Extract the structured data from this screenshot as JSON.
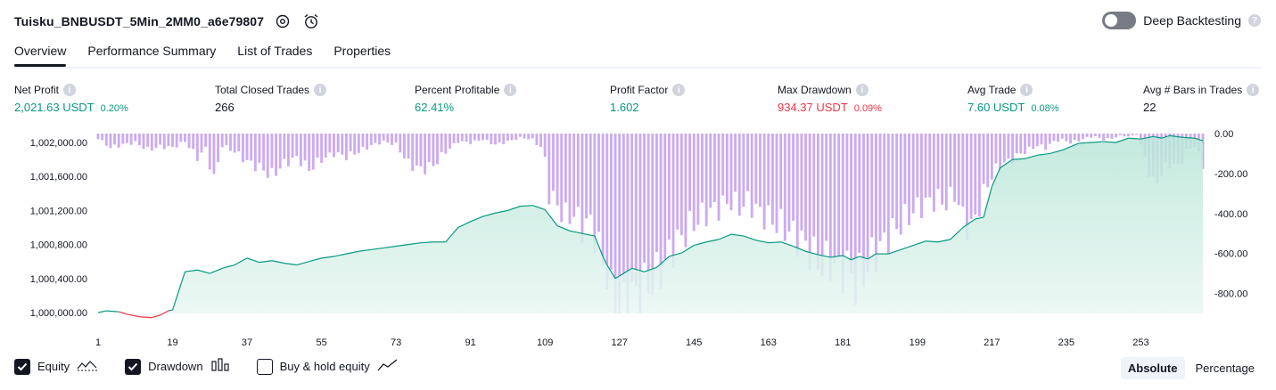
{
  "header": {
    "strategy_title": "Tuisku_BNBUSDT_5Min_2MM0_a6e79807",
    "settings_icon": "gear-icon",
    "alert_icon": "alarm-clock-icon",
    "deep_backtesting_label": "Deep Backtesting",
    "deep_backtesting_enabled": false,
    "help_glyph": "?"
  },
  "tabs": [
    {
      "label": "Overview",
      "active": true
    },
    {
      "label": "Performance Summary",
      "active": false
    },
    {
      "label": "List of Trades",
      "active": false
    },
    {
      "label": "Properties",
      "active": false
    }
  ],
  "metrics": {
    "info_glyph": "i",
    "net_profit": {
      "label": "Net Profit",
      "value": "2,021.63 USDT",
      "pct": "0.20%"
    },
    "total_closed_trades": {
      "label": "Total Closed Trades",
      "value": "266"
    },
    "percent_profitable": {
      "label": "Percent Profitable",
      "value": "62.41%"
    },
    "profit_factor": {
      "label": "Profit Factor",
      "value": "1.602"
    },
    "max_drawdown": {
      "label": "Max Drawdown",
      "value": "934.37 USDT",
      "pct": "0.09%"
    },
    "avg_trade": {
      "label": "Avg Trade",
      "value": "7.60 USDT",
      "pct": "0.08%"
    },
    "avg_bars": {
      "label": "Avg # Bars in Trades",
      "value": "22"
    }
  },
  "colors": {
    "profit": "#089981",
    "loss": "#f23645",
    "drawdown_bar": "#c9a7f0",
    "equity_fill_top": "#b9e6d8",
    "equity_fill_bottom": "#eaf7f3"
  },
  "chart_data": {
    "type": "area",
    "title": "",
    "x_ticks": [
      "1",
      "19",
      "37",
      "55",
      "73",
      "91",
      "109",
      "127",
      "145",
      "163",
      "181",
      "199",
      "217",
      "235",
      "253"
    ],
    "xlim": [
      1,
      268
    ],
    "left_axis_ticks": [
      "1,002,000.00",
      "1,001,600.00",
      "1,001,200.00",
      "1,000,800.00",
      "1,000,400.00",
      "1,000,000.00"
    ],
    "left_ylim": [
      1000000,
      1002000
    ],
    "right_axis_ticks": [
      "0.00",
      "-200.00",
      "-400.00",
      "-600.00",
      "-800.00"
    ],
    "right_ylim": [
      0,
      -900
    ],
    "equity": {
      "name": "Equity",
      "points": [
        [
          1,
          1000000
        ],
        [
          3,
          1000020
        ],
        [
          6,
          1000010
        ],
        [
          8,
          999980
        ],
        [
          11,
          999950
        ],
        [
          14,
          999940
        ],
        [
          16,
          999970
        ],
        [
          18,
          1000020
        ],
        [
          19,
          1000030
        ],
        [
          22,
          1000480
        ],
        [
          25,
          1000500
        ],
        [
          28,
          1000460
        ],
        [
          31,
          1000520
        ],
        [
          34,
          1000560
        ],
        [
          37,
          1000640
        ],
        [
          40,
          1000590
        ],
        [
          43,
          1000610
        ],
        [
          46,
          1000580
        ],
        [
          49,
          1000560
        ],
        [
          52,
          1000600
        ],
        [
          55,
          1000640
        ],
        [
          58,
          1000660
        ],
        [
          61,
          1000690
        ],
        [
          64,
          1000720
        ],
        [
          67,
          1000740
        ],
        [
          70,
          1000760
        ],
        [
          73,
          1000780
        ],
        [
          76,
          1000800
        ],
        [
          79,
          1000820
        ],
        [
          82,
          1000830
        ],
        [
          85,
          1000830
        ],
        [
          88,
          1001000
        ],
        [
          91,
          1001070
        ],
        [
          94,
          1001130
        ],
        [
          97,
          1001170
        ],
        [
          100,
          1001200
        ],
        [
          103,
          1001250
        ],
        [
          106,
          1001260
        ],
        [
          109,
          1001210
        ],
        [
          112,
          1001020
        ],
        [
          115,
          1000960
        ],
        [
          118,
          1000930
        ],
        [
          121,
          1000900
        ],
        [
          123,
          1000660
        ],
        [
          124,
          1000560
        ],
        [
          126,
          1000400
        ],
        [
          128,
          1000460
        ],
        [
          130,
          1000520
        ],
        [
          133,
          1000480
        ],
        [
          136,
          1000530
        ],
        [
          139,
          1000660
        ],
        [
          142,
          1000700
        ],
        [
          145,
          1000790
        ],
        [
          148,
          1000830
        ],
        [
          151,
          1000860
        ],
        [
          154,
          1000920
        ],
        [
          157,
          1000900
        ],
        [
          160,
          1000850
        ],
        [
          163,
          1000820
        ],
        [
          166,
          1000830
        ],
        [
          169,
          1000780
        ],
        [
          172,
          1000720
        ],
        [
          175,
          1000680
        ],
        [
          178,
          1000650
        ],
        [
          181,
          1000670
        ],
        [
          183,
          1000620
        ],
        [
          185,
          1000660
        ],
        [
          187,
          1000630
        ],
        [
          189,
          1000690
        ],
        [
          192,
          1000690
        ],
        [
          195,
          1000740
        ],
        [
          198,
          1000790
        ],
        [
          201,
          1000840
        ],
        [
          204,
          1000830
        ],
        [
          207,
          1000860
        ],
        [
          210,
          1001000
        ],
        [
          213,
          1001100
        ],
        [
          215,
          1001120
        ],
        [
          217,
          1001480
        ],
        [
          219,
          1001700
        ],
        [
          222,
          1001800
        ],
        [
          225,
          1001810
        ],
        [
          228,
          1001850
        ],
        [
          231,
          1001870
        ],
        [
          234,
          1001910
        ],
        [
          236,
          1001950
        ],
        [
          238,
          1001990
        ],
        [
          241,
          1002000
        ],
        [
          244,
          1002010
        ],
        [
          247,
          1002000
        ],
        [
          250,
          1002050
        ],
        [
          253,
          1002040
        ],
        [
          256,
          1002070
        ],
        [
          258,
          1002050
        ],
        [
          260,
          1002080
        ],
        [
          263,
          1002060
        ],
        [
          266,
          1002050
        ],
        [
          268,
          1002020
        ]
      ]
    },
    "drawdown": {
      "name": "Drawdown",
      "points": [
        [
          1,
          -25
        ],
        [
          4,
          -70
        ],
        [
          7,
          -55
        ],
        [
          10,
          -45
        ],
        [
          13,
          -80
        ],
        [
          16,
          -65
        ],
        [
          19,
          -70
        ],
        [
          22,
          -40
        ],
        [
          25,
          -120
        ],
        [
          27,
          -75
        ],
        [
          29,
          -230
        ],
        [
          31,
          -60
        ],
        [
          34,
          -90
        ],
        [
          37,
          -140
        ],
        [
          40,
          -170
        ],
        [
          43,
          -210
        ],
        [
          46,
          -150
        ],
        [
          49,
          -120
        ],
        [
          52,
          -180
        ],
        [
          55,
          -130
        ],
        [
          58,
          -100
        ],
        [
          61,
          -115
        ],
        [
          64,
          -90
        ],
        [
          67,
          -60
        ],
        [
          70,
          -40
        ],
        [
          73,
          -55
        ],
        [
          76,
          -150
        ],
        [
          79,
          -180
        ],
        [
          82,
          -160
        ],
        [
          85,
          -90
        ],
        [
          88,
          -40
        ],
        [
          91,
          -45
        ],
        [
          94,
          -30
        ],
        [
          97,
          -55
        ],
        [
          100,
          -40
        ],
        [
          103,
          -20
        ],
        [
          106,
          -30
        ],
        [
          108,
          -70
        ],
        [
          109,
          -130
        ],
        [
          110,
          -300
        ],
        [
          112,
          -360
        ],
        [
          114,
          -420
        ],
        [
          116,
          -400
        ],
        [
          118,
          -470
        ],
        [
          120,
          -440
        ],
        [
          122,
          -580
        ],
        [
          124,
          -700
        ],
        [
          125,
          -830
        ],
        [
          126,
          -890
        ],
        [
          127,
          -930
        ],
        [
          128,
          -870
        ],
        [
          130,
          -820
        ],
        [
          132,
          -790
        ],
        [
          134,
          -760
        ],
        [
          136,
          -720
        ],
        [
          138,
          -640
        ],
        [
          140,
          -570
        ],
        [
          142,
          -520
        ],
        [
          144,
          -470
        ],
        [
          146,
          -430
        ],
        [
          148,
          -400
        ],
        [
          150,
          -380
        ],
        [
          152,
          -360
        ],
        [
          154,
          -340
        ],
        [
          156,
          -370
        ],
        [
          158,
          -340
        ],
        [
          160,
          -380
        ],
        [
          162,
          -410
        ],
        [
          164,
          -440
        ],
        [
          166,
          -460
        ],
        [
          168,
          -490
        ],
        [
          170,
          -520
        ],
        [
          172,
          -560
        ],
        [
          174,
          -620
        ],
        [
          176,
          -660
        ],
        [
          178,
          -640
        ],
        [
          180,
          -690
        ],
        [
          182,
          -670
        ],
        [
          184,
          -750
        ],
        [
          186,
          -700
        ],
        [
          188,
          -620
        ],
        [
          190,
          -570
        ],
        [
          192,
          -520
        ],
        [
          194,
          -470
        ],
        [
          196,
          -430
        ],
        [
          198,
          -390
        ],
        [
          200,
          -360
        ],
        [
          202,
          -340
        ],
        [
          204,
          -330
        ],
        [
          206,
          -350
        ],
        [
          208,
          -300
        ],
        [
          210,
          -420
        ],
        [
          212,
          -480
        ],
        [
          214,
          -360
        ],
        [
          216,
          -250
        ],
        [
          218,
          -180
        ],
        [
          220,
          -150
        ],
        [
          222,
          -130
        ],
        [
          224,
          -100
        ],
        [
          226,
          -80
        ],
        [
          228,
          -60
        ],
        [
          230,
          -70
        ],
        [
          232,
          -40
        ],
        [
          234,
          -30
        ],
        [
          236,
          -45
        ],
        [
          238,
          -35
        ],
        [
          240,
          -20
        ],
        [
          242,
          -15
        ],
        [
          244,
          -30
        ],
        [
          246,
          -25
        ],
        [
          248,
          -10
        ],
        [
          250,
          -15
        ],
        [
          252,
          -5
        ],
        [
          254,
          -120
        ],
        [
          256,
          -260
        ],
        [
          258,
          -200
        ],
        [
          260,
          -150
        ],
        [
          262,
          -170
        ],
        [
          264,
          -90
        ],
        [
          266,
          -60
        ],
        [
          268,
          -160
        ]
      ]
    },
    "legend_position": "bottom-left"
  },
  "footer": {
    "equity_label": "Equity",
    "equity_checked": true,
    "drawdown_label": "Drawdown",
    "drawdown_checked": true,
    "buyhold_label": "Buy & hold equity",
    "buyhold_checked": false,
    "absolute_label": "Absolute",
    "percentage_label": "Percentage"
  }
}
